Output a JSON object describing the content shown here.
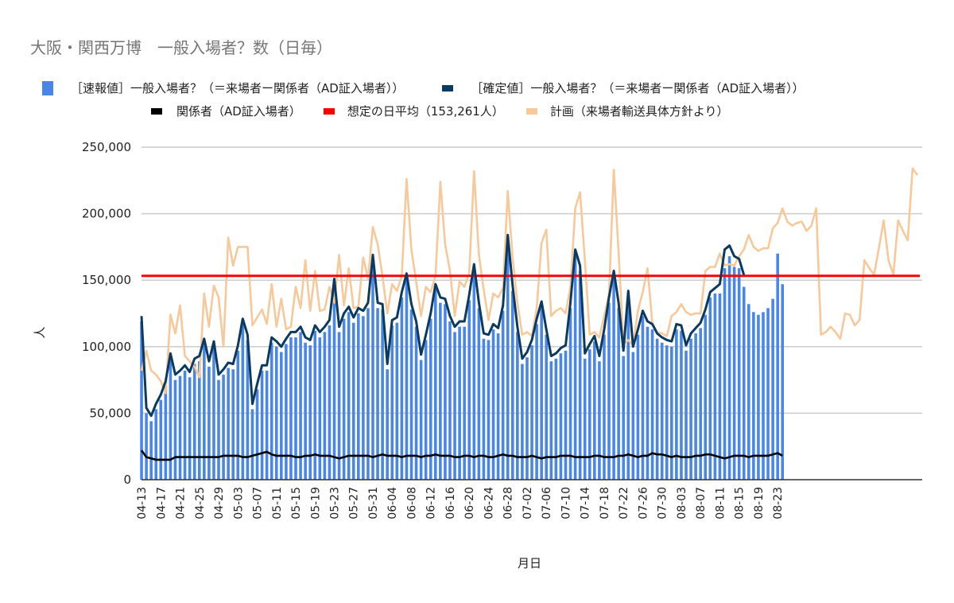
{
  "chart_data": {
    "type": "bar",
    "title": "大阪・関西万博　一般入場者？数（日毎）",
    "xlabel": "月日",
    "ylabel": "人",
    "ylim": [
      0,
      250000
    ],
    "y_ticks": [
      "0",
      "50,000",
      "100,000",
      "150,000",
      "200,000",
      "250,000"
    ],
    "y_tick_values": [
      0,
      50000,
      100000,
      150000,
      200000,
      250000
    ],
    "grid": true,
    "category_count": 162,
    "x_tick_every": 4,
    "x_tick_labels": [
      "04-13",
      "04-17",
      "04-21",
      "04-25",
      "04-29",
      "05-03",
      "05-07",
      "05-11",
      "05-15",
      "05-19",
      "05-23",
      "05-27",
      "05-31",
      "06-04",
      "06-08",
      "06-12",
      "06-16",
      "06-20",
      "06-24",
      "06-28",
      "07-02",
      "07-06",
      "07-10",
      "07-14",
      "07-18",
      "07-22",
      "07-26",
      "07-30",
      "08-03",
      "08-07",
      "08-11",
      "08-15",
      "08-19",
      "08-23"
    ],
    "legend_placement": "top",
    "series": [
      {
        "name": "［速報値］一般入場者？（＝来場者ー関係者（AD証入場者））",
        "kind": "bar",
        "color": "#4a86e8",
        "values": [
          119000,
          50000,
          44000,
          53000,
          60000,
          70000,
          91000,
          75000,
          78000,
          82000,
          77000,
          87000,
          89000,
          102000,
          85000,
          100000,
          75000,
          79000,
          84000,
          83000,
          97000,
          117000,
          105000,
          53000,
          68000,
          82000,
          82000,
          103000,
          100000,
          96000,
          102000,
          107000,
          107000,
          111000,
          103000,
          101000,
          112000,
          107000,
          111000,
          116000,
          147000,
          111000,
          121000,
          126000,
          118000,
          125000,
          123000,
          129000,
          165000,
          129000,
          128000,
          83000,
          116000,
          118000,
          137000,
          151000,
          128000,
          115000,
          90000,
          105000,
          121000,
          143000,
          133000,
          132000,
          119000,
          111000,
          115000,
          115000,
          135000,
          158000,
          129000,
          106000,
          105000,
          113000,
          110000,
          127000,
          180000,
          142000,
          111000,
          87000,
          92000,
          101000,
          117000,
          130000,
          109000,
          89000,
          91000,
          95000,
          97000,
          129000,
          169000,
          157000,
          91000,
          98000,
          104000,
          89000,
          109000,
          133000,
          153000,
          129000,
          93000,
          138000,
          96000,
          109000,
          123000,
          115000,
          113000,
          106000,
          103000,
          101000,
          100000,
          113000,
          112000,
          97000,
          106000,
          110000,
          114000,
          124000,
          137000,
          140000,
          140000,
          159000,
          168000,
          160000,
          159000,
          145000,
          132000,
          126000,
          124000,
          126000,
          129000,
          136000,
          170000,
          147000
        ]
      },
      {
        "name": "［確定値］一般入場者？（＝来場者ー関係者（AD証入場者））",
        "kind": "line",
        "color": "#0b3a5e",
        "values": [
          123000,
          54000,
          48000,
          57000,
          64000,
          74000,
          95000,
          79000,
          82000,
          86000,
          81000,
          91000,
          93000,
          106000,
          89000,
          104000,
          79000,
          83000,
          88000,
          87000,
          101000,
          121000,
          109000,
          57000,
          72000,
          86000,
          86000,
          107000,
          104000,
          100000,
          106000,
          111000,
          111000,
          115000,
          107000,
          105000,
          116000,
          111000,
          115000,
          120000,
          151000,
          115000,
          125000,
          130000,
          122000,
          129000,
          127000,
          133000,
          169000,
          133000,
          132000,
          87000,
          120000,
          122000,
          141000,
          155000,
          132000,
          119000,
          94000,
          109000,
          125000,
          147000,
          137000,
          136000,
          123000,
          115000,
          119000,
          119000,
          139000,
          162000,
          133000,
          110000,
          109000,
          117000,
          114000,
          131000,
          184000,
          146000,
          115000,
          91000,
          96000,
          105000,
          121000,
          134000,
          113000,
          93000,
          95000,
          99000,
          101000,
          133000,
          173000,
          161000,
          95000,
          102000,
          108000,
          93000,
          113000,
          137000,
          157000,
          133000,
          97000,
          142000,
          100000,
          113000,
          127000,
          119000,
          117000,
          110000,
          107000,
          105000,
          104000,
          117000,
          116000,
          101000,
          110000,
          114000,
          118000,
          128000,
          141000,
          144000,
          147000,
          173000,
          176000,
          168000,
          166000,
          154000
        ]
      },
      {
        "name": "関係者（AD証入場者）",
        "kind": "line",
        "color": "#000000",
        "values": [
          22000,
          17000,
          16000,
          15000,
          15000,
          15000,
          15000,
          17000,
          17000,
          17000,
          17000,
          17000,
          17000,
          17000,
          17000,
          17000,
          17000,
          18000,
          18000,
          18000,
          18000,
          17000,
          17000,
          18000,
          19000,
          20000,
          21000,
          19000,
          18000,
          18000,
          18000,
          18000,
          17000,
          17000,
          18000,
          18000,
          19000,
          18000,
          18000,
          18000,
          17000,
          16000,
          17000,
          18000,
          18000,
          18000,
          18000,
          18000,
          17000,
          18000,
          19000,
          18000,
          18000,
          18000,
          17000,
          18000,
          18000,
          18000,
          17000,
          18000,
          18000,
          19000,
          18000,
          18000,
          18000,
          17000,
          17000,
          18000,
          18000,
          17000,
          18000,
          18000,
          17000,
          17000,
          18000,
          19000,
          18000,
          18000,
          17000,
          17000,
          17000,
          18000,
          17000,
          16000,
          17000,
          17000,
          17000,
          18000,
          18000,
          18000,
          17000,
          17000,
          17000,
          17000,
          18000,
          18000,
          17000,
          17000,
          17000,
          18000,
          18000,
          19000,
          18000,
          17000,
          18000,
          18000,
          20000,
          19000,
          19000,
          18000,
          17000,
          18000,
          17000,
          17000,
          17000,
          18000,
          18000,
          19000,
          19000,
          18000,
          17000,
          16000,
          17000,
          18000,
          18000,
          18000,
          17000,
          18000,
          18000,
          18000,
          18000,
          19000,
          20000,
          18000
        ]
      },
      {
        "name": "想定の日平均（153,261人）",
        "kind": "hline",
        "color": "#ff0000",
        "value": 153261
      },
      {
        "name": "計画（来場者輸送具体方針より）",
        "kind": "line",
        "color": "#f6c89a",
        "values": [
          82000,
          97000,
          82000,
          79000,
          74000,
          65000,
          124000,
          110000,
          131000,
          93000,
          89000,
          85000,
          77000,
          140000,
          115000,
          146000,
          137000,
          100000,
          182000,
          161000,
          175000,
          175000,
          175000,
          116000,
          122000,
          128000,
          117000,
          147000,
          115000,
          136000,
          113000,
          115000,
          145000,
          129000,
          165000,
          127000,
          157000,
          127000,
          128000,
          145000,
          133000,
          169000,
          131000,
          159000,
          129000,
          130000,
          167000,
          151000,
          190000,
          177000,
          153000,
          125000,
          147000,
          142000,
          153000,
          226000,
          173000,
          149000,
          123000,
          145000,
          141000,
          153000,
          224000,
          177000,
          157000,
          123000,
          149000,
          145000,
          155000,
          232000,
          169000,
          143000,
          120000,
          140000,
          137000,
          144000,
          217000,
          167000,
          133000,
          109000,
          111000,
          108000,
          129000,
          178000,
          188000,
          123000,
          127000,
          129000,
          125000,
          145000,
          204000,
          216000,
          165000,
          109000,
          111000,
          107000,
          123000,
          139000,
          233000,
          171000,
          102000,
          105000,
          101000,
          127000,
          141000,
          159000,
          117000,
          111000,
          110000,
          108000,
          123000,
          126000,
          132000,
          126000,
          124000,
          125000,
          125000,
          157000,
          160000,
          160000,
          170000,
          161000,
          162000,
          161000,
          168000,
          173000,
          184000,
          175000,
          172000,
          174000,
          174000,
          189000,
          193000,
          204000,
          194000,
          191000,
          193000,
          194000,
          187000,
          191000,
          204000,
          109000,
          111000,
          115000,
          111000,
          106000,
          125000,
          124000,
          116000,
          120000,
          165000,
          159000,
          154000,
          174000,
          195000,
          165000,
          154000,
          195000,
          187000,
          180000,
          234000,
          229000
        ]
      }
    ]
  }
}
